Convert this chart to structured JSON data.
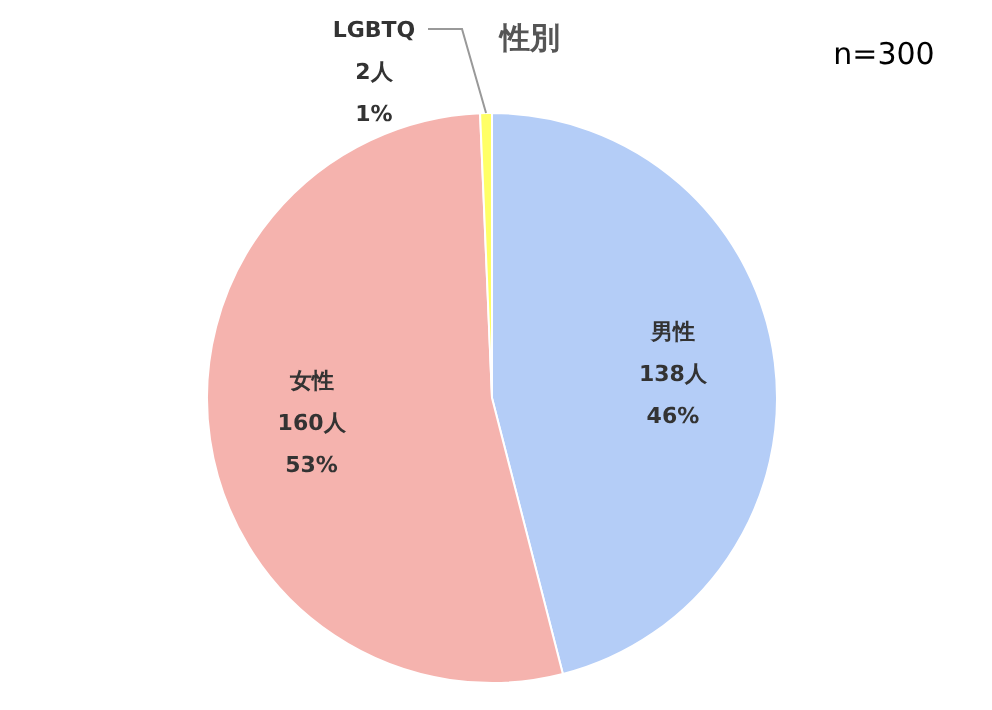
{
  "chart_data": {
    "type": "pie",
    "title": "性別",
    "annotations": [
      "n=300"
    ],
    "categories": [
      "男性",
      "女性",
      "LGBTQ"
    ],
    "values": [
      138,
      160,
      2
    ],
    "colors": [
      "#b4cdf7",
      "#f5b3ae",
      "#ffff66"
    ],
    "value_labels": [
      "138人\n46%",
      "160人\n53%",
      "2人\n1%"
    ],
    "legend": false
  }
}
